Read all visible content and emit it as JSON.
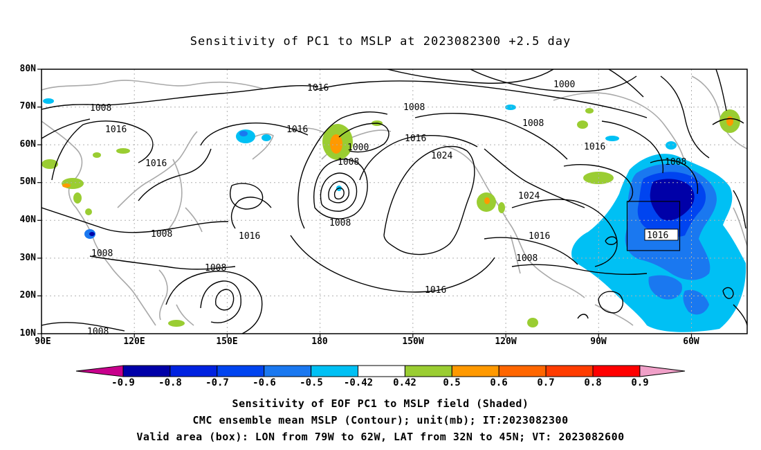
{
  "title": "Sensitivity of PC1 to MSLP at 2023082300 +2.5 day",
  "lat_labels": [
    "80N",
    "70N",
    "60N",
    "50N",
    "40N",
    "30N",
    "20N",
    "10N"
  ],
  "lon_labels": [
    "90E",
    "120E",
    "150E",
    "180",
    "150W",
    "120W",
    "90W",
    "60W"
  ],
  "contour_labels": {
    "c1016_a": "1016",
    "c1008_a": "1008",
    "c1016_b": "1016",
    "c1016_c": "1016",
    "c1016_d": "1016",
    "c1008_b": "1008",
    "c1000_a": "1000",
    "c1008_c": "1008",
    "c1008_d": "1008",
    "c1016_e": "1016",
    "c1024_a": "1024",
    "c1008_e": "1008",
    "c1016_f": "1016",
    "c1008_f": "1008",
    "c1008_g": "1008",
    "c1008_h": "1008",
    "c1000_b": "1000",
    "c1008_i": "1008",
    "c1016_g": "1016",
    "c1024_b": "1024",
    "c1016_h": "1016",
    "c1008_j": "1008",
    "c1008_k": "1008",
    "c1016_box": "1016"
  },
  "colorbar": {
    "labels": [
      "-0.9",
      "-0.8",
      "-0.7",
      "-0.6",
      "-0.5",
      "-0.42",
      "0.42",
      "0.5",
      "0.6",
      "0.7",
      "0.8",
      "0.9"
    ],
    "colors": [
      "#0000a8",
      "#0022e0",
      "#0044f0",
      "#1a78f0",
      "#00c0f4",
      "#ffffff",
      "#9acd32",
      "#ff9900",
      "#ff6600",
      "#ff3c00",
      "#ff0000"
    ],
    "under_color": "#c8008c",
    "over_color": "#f0a0c8"
  },
  "caption": {
    "line1": "Sensitivity of EOF PC1 to MSLP field (Shaded)",
    "line2": "CMC ensemble mean MSLP (Contour); unit(mb); IT:2023082300",
    "line3": "Valid area (box): LON from 79W to 62W, LAT from 32N to 45N; VT: 2023082600"
  }
}
